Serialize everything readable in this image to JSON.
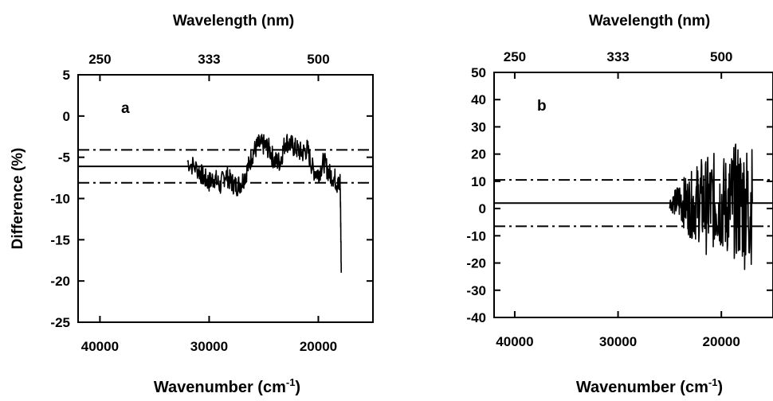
{
  "chart_data": [
    {
      "type": "line",
      "panel_label": "a",
      "xlabel_prefix": "Wavenumber",
      "xlabel_unit_base": "(cm",
      "xlabel_unit_exp": "-1",
      "xlabel_unit_close": ")",
      "ylabel": "Difference (%)",
      "top_xlabel": "Wavelength (nm)",
      "x_reversed": true,
      "xlim": [
        42000,
        15000
      ],
      "ylim": [
        -25,
        5
      ],
      "x_ticks": [
        40000,
        30000,
        20000
      ],
      "y_ticks": [
        5,
        0,
        -5,
        -10,
        -15,
        -20,
        -25
      ],
      "top_ticks": [
        {
          "label": "250",
          "wavenumber": 40000
        },
        {
          "label": "333",
          "wavenumber": 30000
        },
        {
          "label": "500",
          "wavenumber": 20000
        }
      ],
      "mean_line": -6.1,
      "band_lines": [
        -4.1,
        -8.1
      ],
      "series": [
        {
          "x": [
            32000,
            31000,
            30500,
            30000,
            29500,
            29000,
            28500,
            28000,
            27500,
            27000,
            26500,
            26000,
            25500,
            25000,
            24500,
            24000,
            23500,
            23000,
            22500,
            22000,
            21500,
            21000,
            20500,
            20000,
            19500,
            19000,
            18500,
            18200,
            18000,
            17900
          ],
          "y": [
            -5.5,
            -6.5,
            -7.5,
            -8,
            -7.5,
            -8.5,
            -7,
            -8,
            -8.5,
            -8,
            -6.5,
            -4.5,
            -3.5,
            -3.5,
            -4,
            -5.5,
            -5.5,
            -3,
            -3.5,
            -4,
            -4.5,
            -4,
            -6.5,
            -7,
            -5.5,
            -7,
            -7.5,
            -8.5,
            -8,
            -19
          ]
        }
      ]
    },
    {
      "type": "line",
      "panel_label": "b",
      "xlabel_prefix": "Wavenumber",
      "xlabel_unit_base": "(cm",
      "xlabel_unit_exp": "-1",
      "xlabel_unit_close": ")",
      "top_xlabel": "Wavelength (nm)",
      "x_reversed": true,
      "xlim": [
        42000,
        15000
      ],
      "ylim": [
        -40,
        50
      ],
      "x_ticks": [
        40000,
        30000,
        20000
      ],
      "y_ticks": [
        50,
        40,
        30,
        20,
        10,
        0,
        -10,
        -20,
        -30,
        -40
      ],
      "top_ticks": [
        {
          "label": "250",
          "wavenumber": 40000
        },
        {
          "label": "333",
          "wavenumber": 30000
        },
        {
          "label": "500",
          "wavenumber": 20000
        }
      ],
      "mean_line": 2,
      "band_lines": [
        10.5,
        -6.5
      ],
      "series": [
        {
          "x": [
            25000,
            24500,
            24000,
            23500,
            23000,
            22500,
            22000,
            21500,
            21000,
            20500,
            20000,
            19500,
            19000,
            18500,
            18000,
            17500,
            17000
          ],
          "y": [
            2,
            2,
            3,
            2,
            1,
            2,
            3,
            1,
            2,
            3,
            2,
            1,
            2,
            3,
            2,
            1,
            2
          ],
          "envelope": [
            2,
            5,
            8,
            10,
            12,
            14,
            16,
            18,
            18,
            18,
            18,
            19,
            20,
            22,
            24,
            24,
            22
          ]
        }
      ]
    }
  ]
}
